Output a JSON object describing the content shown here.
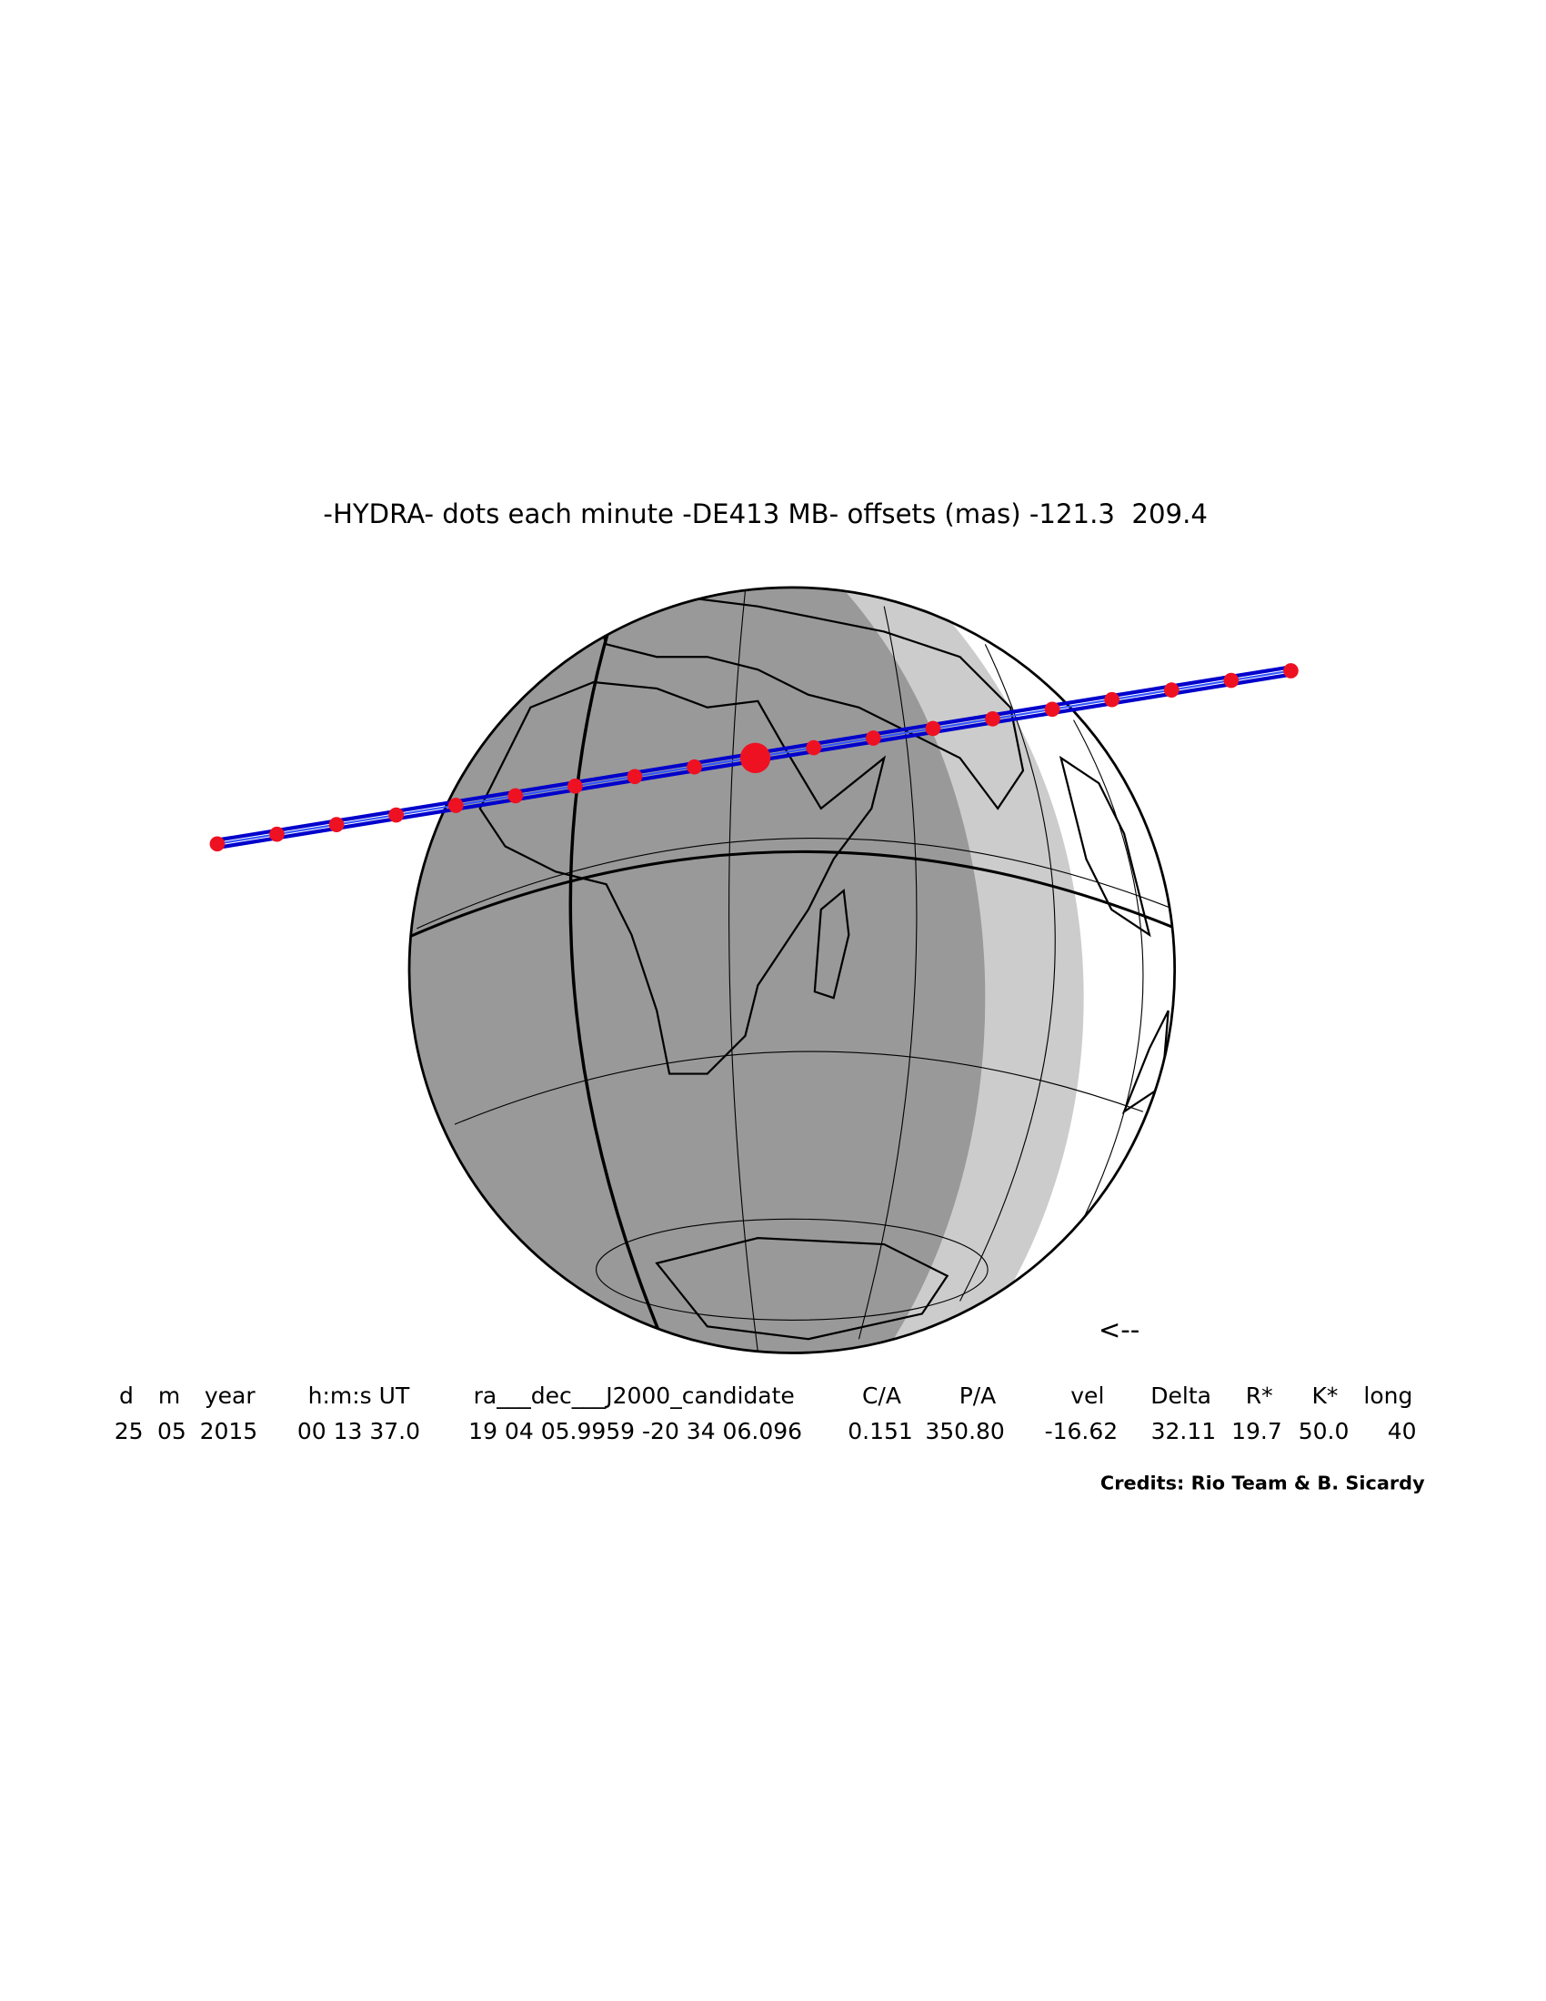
{
  "title": "-HYDRA- dots each minute -DE413 MB- offsets (mas) -121.3  209.4",
  "direction": "<--",
  "table": {
    "header": [
      "d",
      "m",
      "year",
      "h:m:s UT",
      "ra___dec___J2000_candidate",
      "C/A",
      "P/A",
      "vel",
      "Delta",
      "R*",
      "K*",
      "long"
    ],
    "row": [
      "25",
      "05",
      "2015",
      "00 13 37.0",
      "19 04 05.9959 -20 34 06.096",
      "0.151",
      "350.80",
      "-16.62",
      "32.11",
      "19.7",
      "50.0",
      "40"
    ]
  },
  "credits": "Credits: Rio Team & B. Sicardy"
}
